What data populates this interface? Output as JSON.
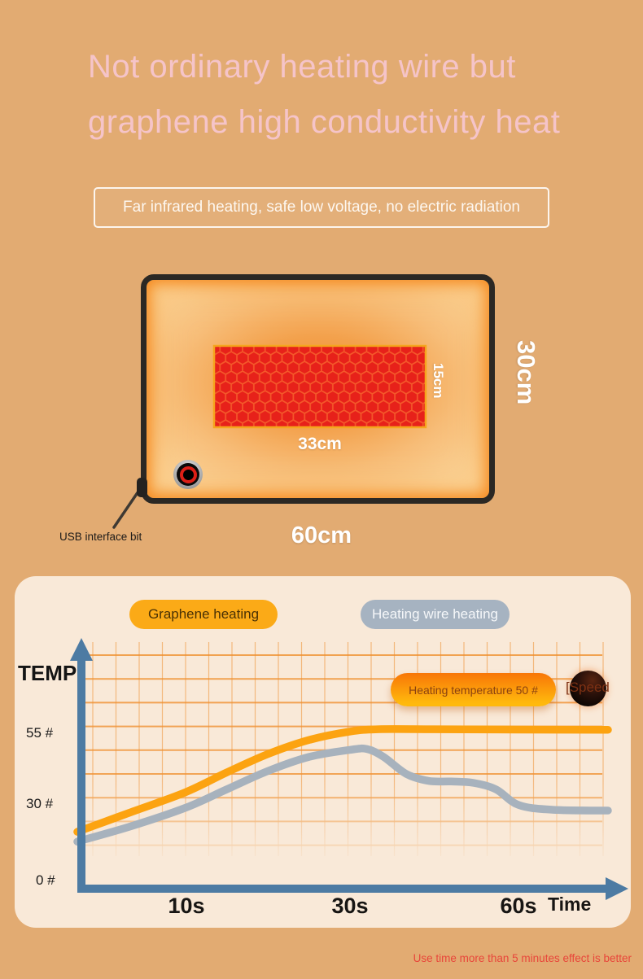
{
  "header": {
    "title_line1": "Not ordinary heating wire but",
    "title_line2": "graphene high conductivity heat",
    "banner": "Far infrared heating, safe low voltage, no electric radiation"
  },
  "product": {
    "heat_zone_width": "33cm",
    "heat_zone_height": "15cm",
    "pad_width": "60cm",
    "pad_height": "30cm",
    "usb_label": "USB interface bit"
  },
  "chart": {
    "legend_graphene": "Graphene heating",
    "legend_wire": "Heating wire heating",
    "y_axis_title": "TEMP",
    "x_axis_title": "Time",
    "y_ticks": [
      "55 #",
      "30 #",
      "0 #"
    ],
    "x_ticks": [
      "10s",
      "30s",
      "60s"
    ],
    "annotation": "Heating temperature 50 #",
    "speed_label": "[Speed"
  },
  "footer": {
    "note": "Use time more than 5 minutes effect is better"
  },
  "colors": {
    "background": "#e2ab72",
    "panel": "#f9e9d8",
    "graphene_series": "#fca311",
    "wire_series": "#a7b2bd",
    "axis": "#4d7ba3",
    "grid": "#ef8e2d",
    "heat_zone_red": "#e7211a",
    "note_red": "#e8453a"
  },
  "chart_data": {
    "type": "line",
    "xlabel": "Time",
    "ylabel": "TEMP",
    "x_unit": "s",
    "y_unit": "#",
    "x_ticks_values": [
      10,
      30,
      60
    ],
    "y_ticks_values": [
      55,
      30,
      0
    ],
    "ylim": [
      0,
      65
    ],
    "annotations": [
      "Heating temperature 50 #",
      "[Speed"
    ],
    "series": [
      {
        "name": "Graphene heating",
        "color": "#fca311",
        "points": [
          [
            0,
            19
          ],
          [
            5,
            26
          ],
          [
            10,
            33
          ],
          [
            15,
            40
          ],
          [
            20,
            46.5
          ],
          [
            25,
            51.5
          ],
          [
            30,
            54.5
          ],
          [
            35,
            55.3
          ],
          [
            45,
            55.3
          ],
          [
            60,
            55.2
          ],
          [
            76,
            55.1
          ]
        ]
      },
      {
        "name": "Heating wire heating",
        "color": "#a7b2bd",
        "points": [
          [
            0,
            15.5
          ],
          [
            5,
            21
          ],
          [
            10,
            27.5
          ],
          [
            15,
            34
          ],
          [
            20,
            40.5
          ],
          [
            25,
            45.5
          ],
          [
            30,
            48
          ],
          [
            33,
            48.3
          ],
          [
            36,
            45.5
          ],
          [
            40,
            39.5
          ],
          [
            44,
            37
          ],
          [
            48,
            36.8
          ],
          [
            52,
            36.3
          ],
          [
            56,
            34
          ],
          [
            60,
            28.5
          ],
          [
            66,
            26.8
          ],
          [
            76,
            26.5
          ]
        ]
      }
    ]
  }
}
